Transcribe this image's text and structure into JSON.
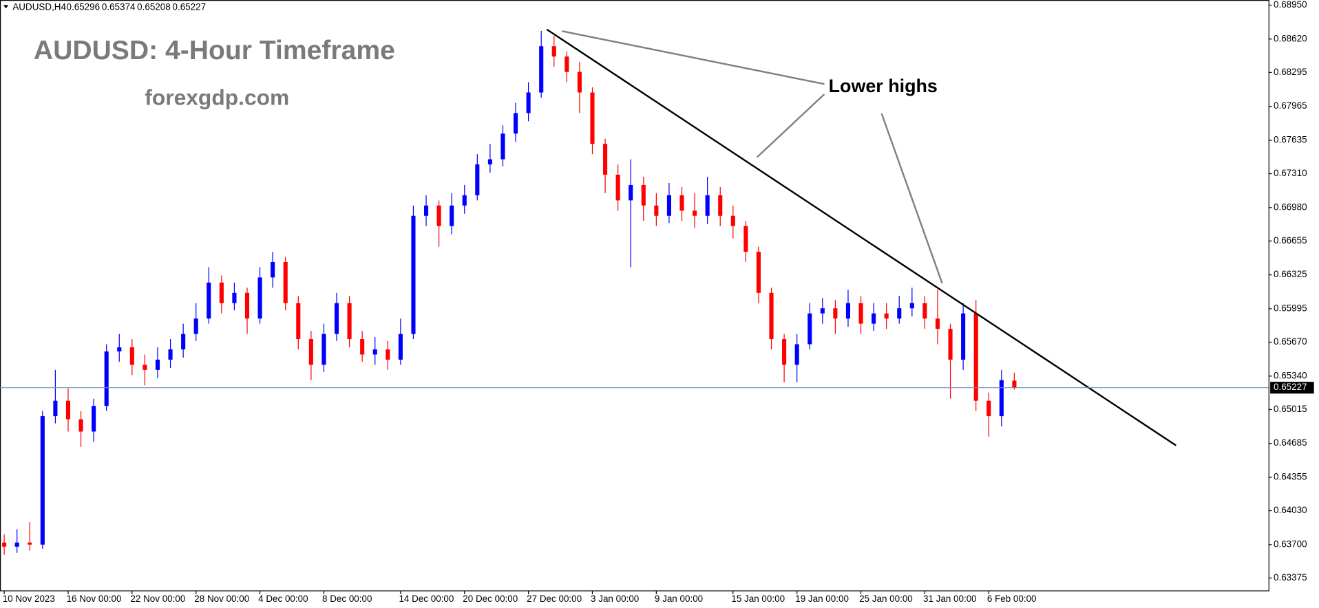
{
  "chart_data": {
    "type": "candlestick",
    "symbol": "AUDUSD,H4",
    "title": "AUDUSD: 4-Hour Timeframe",
    "subtitle": "forexgdp.com",
    "annotations": [
      "Lower highs"
    ],
    "categories": [
      "10 Nov 2023",
      null,
      null,
      null,
      null,
      "16 Nov 00:00",
      null,
      null,
      null,
      null,
      "22 Nov 00:00",
      null,
      null,
      null,
      null,
      "28 Nov 00:00",
      null,
      null,
      null,
      null,
      "4 Dec 00:00",
      null,
      null,
      null,
      null,
      "8 Dec 00:00",
      null,
      null,
      null,
      null,
      null,
      "14 Dec 00:00",
      null,
      null,
      null,
      null,
      "20 Dec 00:00",
      null,
      null,
      null,
      null,
      "27 Dec 00:00",
      null,
      null,
      null,
      null,
      "3 Jan 00:00",
      null,
      null,
      null,
      null,
      "9 Jan 00:00",
      null,
      null,
      null,
      null,
      null,
      "15 Jan 00:00",
      null,
      null,
      null,
      null,
      "19 Jan 00:00",
      null,
      null,
      null,
      null,
      "25 Jan 00:00",
      null,
      null,
      null,
      null,
      "31 Jan 00:00",
      null,
      null,
      null,
      null,
      "6 Feb 00:00",
      null,
      null
    ],
    "open": [
      0.6372,
      0.6368,
      0.6372,
      0.637,
      0.6495,
      0.651,
      0.6492,
      0.648,
      0.6505,
      0.6558,
      0.6562,
      0.6545,
      0.654,
      0.655,
      0.656,
      0.6575,
      0.659,
      0.6625,
      0.6605,
      0.6615,
      0.659,
      0.663,
      0.6645,
      0.6605,
      0.657,
      0.6545,
      0.6575,
      0.6605,
      0.657,
      0.6555,
      0.656,
      0.655,
      0.6575,
      0.669,
      0.67,
      0.668,
      0.67,
      0.671,
      0.674,
      0.6745,
      0.677,
      0.679,
      0.681,
      0.6855,
      0.6845,
      0.683,
      0.681,
      0.676,
      0.673,
      0.6705,
      0.672,
      0.67,
      0.669,
      0.671,
      0.6695,
      0.669,
      0.671,
      0.669,
      0.668,
      0.6655,
      0.6615,
      0.657,
      0.6545,
      0.6565,
      0.6595,
      0.66,
      0.659,
      0.6605,
      0.6585,
      0.6595,
      0.659,
      0.66,
      0.6605,
      0.659,
      0.658,
      0.655,
      0.6595,
      0.651,
      0.6495,
      0.65296
    ],
    "high": [
      0.638,
      0.6385,
      0.6392,
      0.65,
      0.654,
      0.6522,
      0.65,
      0.6512,
      0.6565,
      0.6575,
      0.657,
      0.6555,
      0.6562,
      0.657,
      0.6585,
      0.6605,
      0.664,
      0.6632,
      0.6625,
      0.662,
      0.664,
      0.6655,
      0.665,
      0.6612,
      0.6578,
      0.6585,
      0.6615,
      0.6612,
      0.6578,
      0.6572,
      0.6568,
      0.659,
      0.67,
      0.671,
      0.6705,
      0.6712,
      0.672,
      0.675,
      0.676,
      0.6778,
      0.68,
      0.682,
      0.687,
      0.6865,
      0.685,
      0.684,
      0.6815,
      0.6765,
      0.674,
      0.6745,
      0.6728,
      0.6712,
      0.6722,
      0.6718,
      0.6712,
      0.6728,
      0.6718,
      0.67,
      0.6685,
      0.666,
      0.662,
      0.6575,
      0.6575,
      0.6605,
      0.661,
      0.6608,
      0.6618,
      0.6612,
      0.6605,
      0.6605,
      0.6612,
      0.662,
      0.6612,
      0.6618,
      0.6585,
      0.6605,
      0.6608,
      0.6518,
      0.654,
      0.65374
    ],
    "low": [
      0.636,
      0.6362,
      0.6364,
      0.6366,
      0.6488,
      0.648,
      0.6465,
      0.647,
      0.65,
      0.6548,
      0.6535,
      0.6525,
      0.6532,
      0.6542,
      0.6552,
      0.6568,
      0.6585,
      0.6595,
      0.6598,
      0.6575,
      0.6585,
      0.662,
      0.6598,
      0.656,
      0.653,
      0.6538,
      0.6568,
      0.6562,
      0.6548,
      0.6545,
      0.654,
      0.6545,
      0.657,
      0.668,
      0.666,
      0.6672,
      0.6692,
      0.6705,
      0.6732,
      0.6738,
      0.6762,
      0.6782,
      0.6805,
      0.6835,
      0.682,
      0.679,
      0.675,
      0.6712,
      0.6695,
      0.664,
      0.6685,
      0.668,
      0.6683,
      0.6685,
      0.6678,
      0.6682,
      0.668,
      0.6668,
      0.6645,
      0.6605,
      0.656,
      0.6528,
      0.6528,
      0.656,
      0.6585,
      0.6575,
      0.6582,
      0.6575,
      0.6578,
      0.658,
      0.6585,
      0.6592,
      0.658,
      0.6565,
      0.6512,
      0.654,
      0.65,
      0.6475,
      0.6485,
      0.65208
    ],
    "close": [
      0.6368,
      0.6372,
      0.637,
      0.6495,
      0.651,
      0.6492,
      0.648,
      0.6505,
      0.6558,
      0.6562,
      0.6545,
      0.654,
      0.655,
      0.656,
      0.6575,
      0.659,
      0.6625,
      0.6605,
      0.6615,
      0.659,
      0.663,
      0.6645,
      0.6605,
      0.657,
      0.6545,
      0.6575,
      0.6605,
      0.657,
      0.6555,
      0.656,
      0.655,
      0.6575,
      0.669,
      0.67,
      0.668,
      0.67,
      0.671,
      0.674,
      0.6745,
      0.677,
      0.679,
      0.681,
      0.6855,
      0.6845,
      0.683,
      0.681,
      0.676,
      0.673,
      0.6705,
      0.672,
      0.67,
      0.669,
      0.671,
      0.6695,
      0.669,
      0.671,
      0.669,
      0.668,
      0.6655,
      0.6615,
      0.657,
      0.6545,
      0.6565,
      0.6595,
      0.66,
      0.659,
      0.6605,
      0.6585,
      0.6595,
      0.659,
      0.66,
      0.6605,
      0.659,
      0.658,
      0.655,
      0.6595,
      0.651,
      0.6495,
      0.653,
      0.65227
    ],
    "up_color": "#0000ff",
    "down_color": "#ff0000",
    "ylim": [
      0.6325,
      0.69
    ],
    "yticks": [
      {
        "value": 0.6895,
        "label": "0.68950"
      },
      {
        "value": 0.6862,
        "label": "0.68620"
      },
      {
        "value": 0.68295,
        "label": "0.68295"
      },
      {
        "value": 0.67965,
        "label": "0.67965"
      },
      {
        "value": 0.67635,
        "label": "0.67635"
      },
      {
        "value": 0.6731,
        "label": "0.67310"
      },
      {
        "value": 0.6698,
        "label": "0.66980"
      },
      {
        "value": 0.66655,
        "label": "0.66655"
      },
      {
        "value": 0.66325,
        "label": "0.66325"
      },
      {
        "value": 0.65995,
        "label": "0.65995"
      },
      {
        "value": 0.6567,
        "label": "0.65670"
      },
      {
        "value": 0.6534,
        "label": "0.65340"
      },
      {
        "value": 0.65015,
        "label": "0.65015"
      },
      {
        "value": 0.64685,
        "label": "0.64685"
      },
      {
        "value": 0.64355,
        "label": "0.64355"
      },
      {
        "value": 0.6403,
        "label": "0.64030"
      },
      {
        "value": 0.637,
        "label": "0.63700"
      },
      {
        "value": 0.63375,
        "label": "0.63375"
      }
    ]
  }
}
